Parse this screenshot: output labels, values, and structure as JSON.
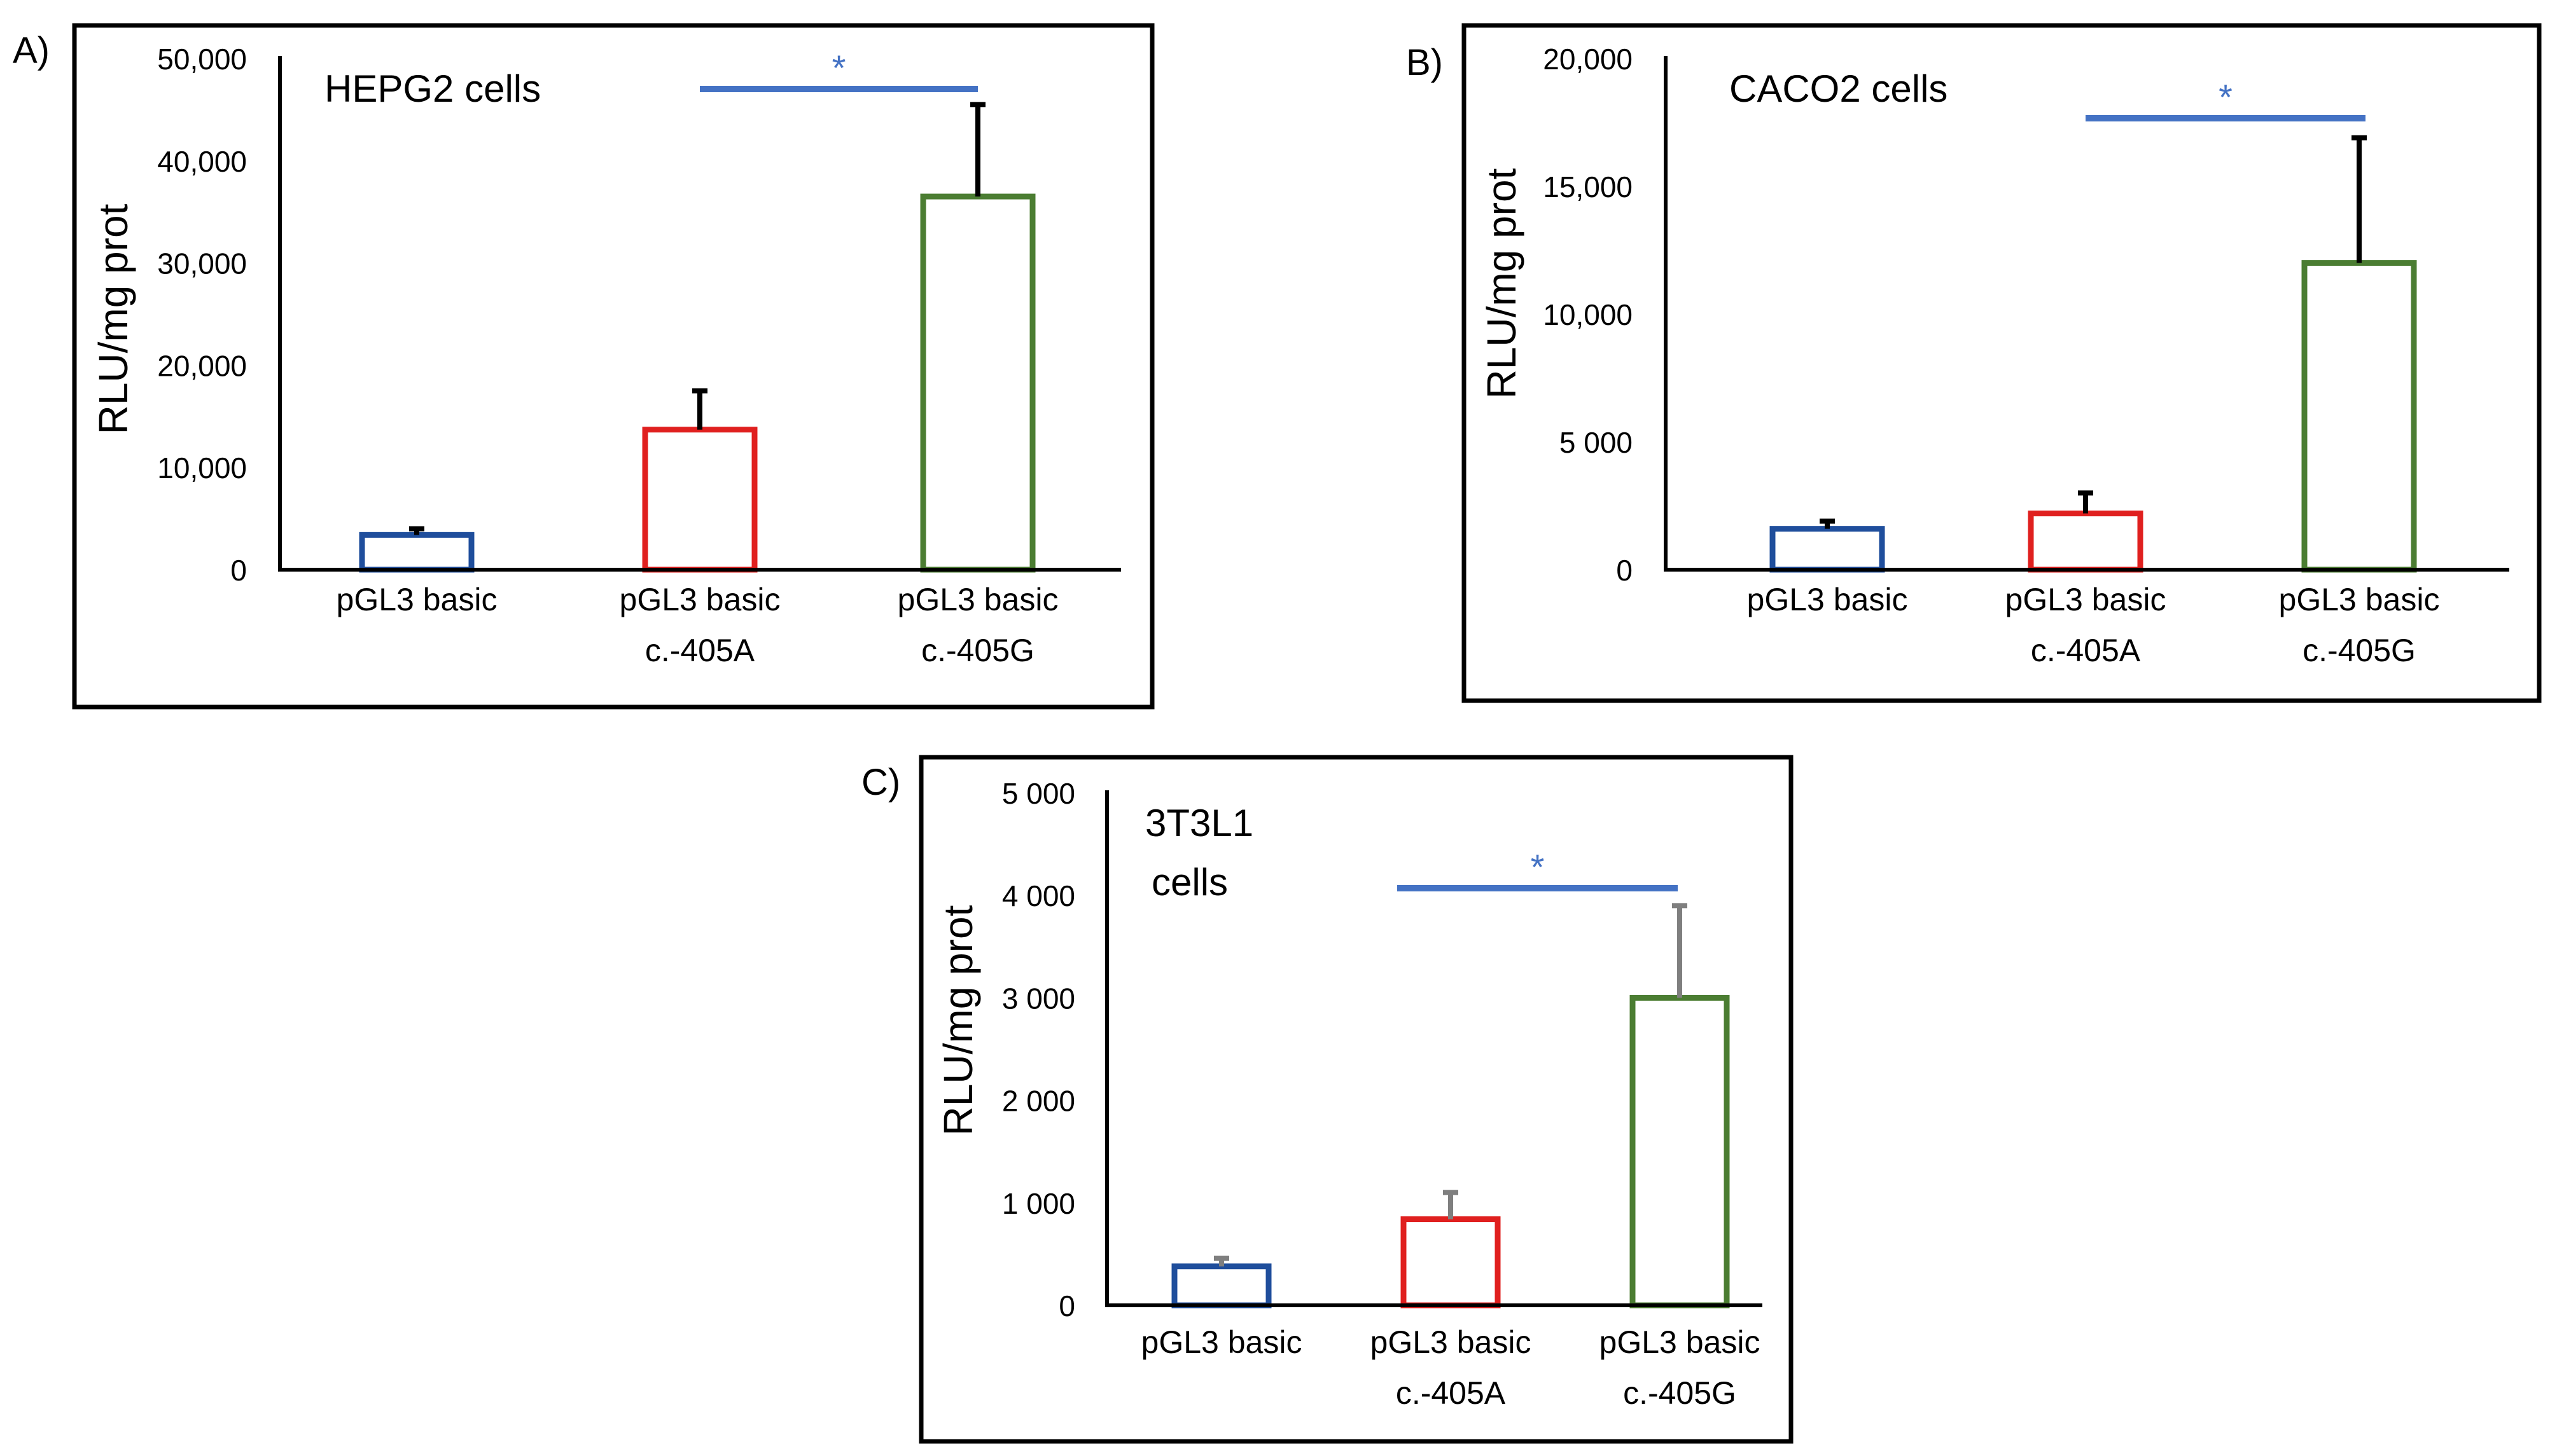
{
  "figure": {
    "background": "#ffffff",
    "frame_color": "#000000",
    "axis_color": "#000000"
  },
  "colors": {
    "bar_outline": [
      "#1f4e9c",
      "#e0201f",
      "#4b7d32"
    ],
    "error_bar": "#000000",
    "error_bar_panel_c": "#7f7f7f",
    "significance": "#4472c4"
  },
  "chart_data": [
    {
      "type": "bar",
      "panel_label": "A)",
      "title": "HEPG2 cells",
      "xlabel": "",
      "ylabel": "RLU/mg prot",
      "categories": [
        [
          "pGL3 basic"
        ],
        [
          "pGL3 basic",
          "c.-405A"
        ],
        [
          "pGL3 basic",
          "c.-405G"
        ]
      ],
      "values": [
        3400,
        13700,
        36500
      ],
      "error_upper": [
        4000,
        17500,
        45500
      ],
      "ylim": [
        0,
        50000
      ],
      "yticks": [
        0,
        10000,
        20000,
        30000,
        40000,
        50000
      ],
      "ytick_labels": [
        "0",
        "10,000",
        "20,000",
        "30,000",
        "40,000",
        "50,000"
      ],
      "significance": {
        "from": 1,
        "to": 2,
        "level": 47000,
        "label": "*"
      },
      "grid": false,
      "legend": "none"
    },
    {
      "type": "bar",
      "panel_label": "B)",
      "title": "CACO2 cells",
      "xlabel": "",
      "ylabel": "RLU/mg prot",
      "categories": [
        [
          "pGL3 basic"
        ],
        [
          "pGL3 basic",
          "c.-405A"
        ],
        [
          "pGL3 basic",
          "c.-405G"
        ]
      ],
      "values": [
        1600,
        2200,
        12000
      ],
      "error_upper": [
        1900,
        3000,
        16900
      ],
      "ylim": [
        0,
        20000
      ],
      "yticks": [
        0,
        5000,
        10000,
        15000,
        20000
      ],
      "ytick_labels": [
        "0",
        "5 000",
        "10,000",
        "15,000",
        "20,000"
      ],
      "significance": {
        "from": 1,
        "to": 2,
        "level": 17600,
        "label": "*"
      },
      "grid": false,
      "legend": "none"
    },
    {
      "type": "bar",
      "panel_label": "C)",
      "title": "3T3L1 cells",
      "title_lines": [
        "3T3L1",
        "cells"
      ],
      "xlabel": "",
      "ylabel": "RLU/mg prot",
      "categories": [
        [
          "pGL3 basic"
        ],
        [
          "pGL3 basic",
          "c.-405A"
        ],
        [
          "pGL3 basic",
          "c.-405G"
        ]
      ],
      "values": [
        380,
        840,
        3000
      ],
      "error_upper": [
        460,
        1100,
        3900
      ],
      "ylim": [
        0,
        5000
      ],
      "yticks": [
        0,
        1000,
        2000,
        3000,
        4000,
        5000
      ],
      "ytick_labels": [
        "0",
        "1 000",
        "2 000",
        "3 000",
        "4 000",
        "5 000"
      ],
      "significance": {
        "from": 1,
        "to": 2,
        "level": 4080,
        "label": "*"
      },
      "grid": false,
      "legend": "none"
    }
  ]
}
